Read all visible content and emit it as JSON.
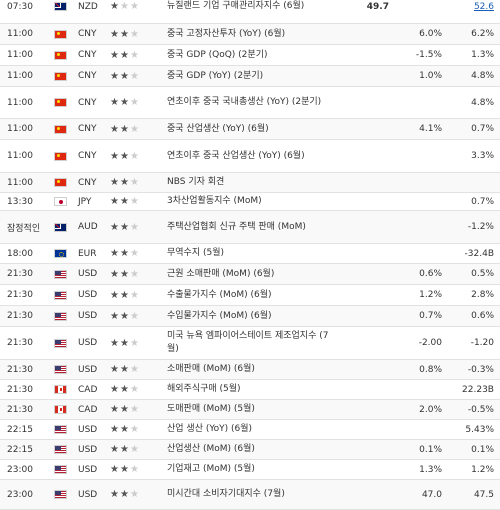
{
  "colors": {
    "star_on": "#555555",
    "star_off": "#cccccc",
    "link": "#1a5fb4",
    "row_border": "#e2e2e2"
  },
  "rows": [
    {
      "time": "07:30",
      "flag": "NZ",
      "currency": "NZD",
      "importance": 1,
      "event": "뉴질랜드 기업 구매관리자지수 (6월)",
      "actual": "49.7",
      "forecast": "",
      "previous": "52.6",
      "prev_link": true,
      "h": 34
    },
    {
      "time": "11:00",
      "flag": "CN",
      "currency": "CNY",
      "importance": 2,
      "event": "중국 고정자산투자 (YoY) (6월)",
      "actual": "",
      "forecast": "6.0%",
      "previous": "6.2%",
      "h": 21
    },
    {
      "time": "11:00",
      "flag": "CN",
      "currency": "CNY",
      "importance": 2,
      "event": "중국 GDP (QoQ) (2분기)",
      "actual": "",
      "forecast": "-1.5%",
      "previous": "1.3%",
      "h": 21
    },
    {
      "time": "11:00",
      "flag": "CN",
      "currency": "CNY",
      "importance": 2,
      "event": "중국 GDP (YoY) (2분기)",
      "actual": "",
      "forecast": "1.0%",
      "previous": "4.8%",
      "h": 21
    },
    {
      "time": "11:00",
      "flag": "CN",
      "currency": "CNY",
      "importance": 2,
      "event": "연초이후 중국 국내총생산 (YoY) (2분기)",
      "actual": "",
      "forecast": "",
      "previous": "4.8%",
      "h": 32
    },
    {
      "time": "11:00",
      "flag": "CN",
      "currency": "CNY",
      "importance": 2,
      "event": "중국 산업생산 (YoY) (6월)",
      "actual": "",
      "forecast": "4.1%",
      "previous": "0.7%",
      "h": 21
    },
    {
      "time": "11:00",
      "flag": "CN",
      "currency": "CNY",
      "importance": 2,
      "event": "연초이후 중국 산업생산 (YoY) (6월)",
      "actual": "",
      "forecast": "",
      "previous": "3.3%",
      "h": 33
    },
    {
      "time": "11:00",
      "flag": "CN",
      "currency": "CNY",
      "importance": 2,
      "event": "NBS 기자 회견",
      "actual": "",
      "forecast": "",
      "previous": "",
      "h": 20
    },
    {
      "time": "13:30",
      "flag": "JP",
      "currency": "JPY",
      "importance": 2,
      "event": "3차산업활동지수 (MoM)",
      "actual": "",
      "forecast": "",
      "previous": "0.7%",
      "h": 18
    },
    {
      "time": "잠정적인",
      "flag": "AU",
      "currency": "AUD",
      "importance": 2,
      "event": "주택산업협회 신규 주택 판매 (MoM)",
      "actual": "",
      "forecast": "",
      "previous": "-1.2%",
      "h": 33
    },
    {
      "time": "18:00",
      "flag": "EU",
      "currency": "EUR",
      "importance": 2,
      "event": "무역수지 (5월)",
      "actual": "",
      "forecast": "",
      "previous": "-32.4B",
      "h": 20
    },
    {
      "time": "21:30",
      "flag": "US",
      "currency": "USD",
      "importance": 2,
      "event": "근원 소매판매 (MoM) (6월)",
      "actual": "",
      "forecast": "0.6%",
      "previous": "0.5%",
      "h": 21
    },
    {
      "time": "21:30",
      "flag": "US",
      "currency": "USD",
      "importance": 2,
      "event": "수출물가지수 (MoM) (6월)",
      "actual": "",
      "forecast": "1.2%",
      "previous": "2.8%",
      "h": 21
    },
    {
      "time": "21:30",
      "flag": "US",
      "currency": "USD",
      "importance": 2,
      "event": "수입물가지수 (MoM) (6월)",
      "actual": "",
      "forecast": "0.7%",
      "previous": "0.6%",
      "h": 21
    },
    {
      "time": "21:30",
      "flag": "US",
      "currency": "USD",
      "importance": 2,
      "event": "미국 뉴욕 엠파이어스테이트 제조업지수 (7월)",
      "actual": "",
      "forecast": "-2.00",
      "previous": "-1.20",
      "h": 33
    },
    {
      "time": "21:30",
      "flag": "US",
      "currency": "USD",
      "importance": 2,
      "event": "소매판매 (MoM) (6월)",
      "actual": "",
      "forecast": "0.8%",
      "previous": "-0.3%",
      "h": 20
    },
    {
      "time": "21:30",
      "flag": "CA",
      "currency": "CAD",
      "importance": 2,
      "event": "해외주식구매 (5월)",
      "actual": "",
      "forecast": "",
      "previous": "22.23B",
      "h": 20
    },
    {
      "time": "21:30",
      "flag": "CA",
      "currency": "CAD",
      "importance": 2,
      "event": "도매판매 (MoM) (5월)",
      "actual": "",
      "forecast": "2.0%",
      "previous": "-0.5%",
      "h": 20
    },
    {
      "time": "22:15",
      "flag": "US",
      "currency": "USD",
      "importance": 2,
      "event": "산업 생산 (YoY) (6월)",
      "actual": "",
      "forecast": "",
      "previous": "5.43%",
      "h": 20
    },
    {
      "time": "22:15",
      "flag": "US",
      "currency": "USD",
      "importance": 2,
      "event": "산업생산 (MoM) (6월)",
      "actual": "",
      "forecast": "0.1%",
      "previous": "0.1%",
      "h": 20
    },
    {
      "time": "23:00",
      "flag": "US",
      "currency": "USD",
      "importance": 2,
      "event": "기업재고 (MoM) (5월)",
      "actual": "",
      "forecast": "1.3%",
      "previous": "1.2%",
      "h": 20
    },
    {
      "time": "23:00",
      "flag": "US",
      "currency": "USD",
      "importance": 2,
      "event": "미시간대 소비자기대지수 (7월)",
      "actual": "",
      "forecast": "47.0",
      "previous": "47.5",
      "h": 30
    }
  ]
}
